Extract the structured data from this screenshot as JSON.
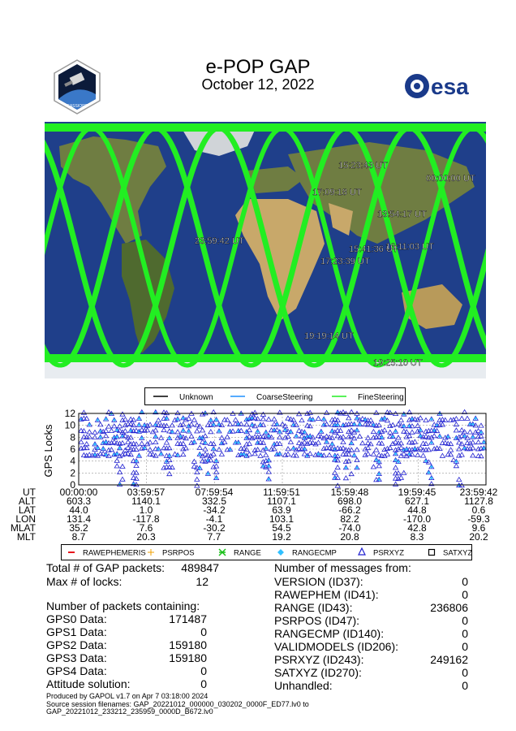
{
  "header": {
    "title": "e-POP GAP",
    "date": "October 12, 2022",
    "logo_left_label": "CASSIOPE",
    "logo_right_label": "esa"
  },
  "map": {
    "time_labels": [
      "15:23:43 UT",
      "00:00:00 UT",
      "17:09:18 UT",
      "13:54:17 UT",
      "23:59:42 UT",
      "15:41:36 UT",
      "16:11:03 UT",
      "17:23:39 UT",
      "19:19:14 UT",
      "19:25:10 UT"
    ],
    "legend": [
      {
        "label": "Unknown",
        "color": "#000000"
      },
      {
        "label": "CoarseSteering",
        "color": "#1e90ff"
      },
      {
        "label": "FineSteering",
        "color": "#22ee22"
      }
    ]
  },
  "chart_data": {
    "type": "scatter",
    "title": "",
    "ylabel": "GPS Locks",
    "ylim": [
      0,
      12
    ],
    "yticks": [
      0,
      2,
      4,
      6,
      8,
      10,
      12
    ],
    "x_ticks": [
      "00:00:00",
      "03:59:57",
      "07:59:54",
      "11:59:51",
      "15:59:48",
      "19:59:45",
      "23:59:42"
    ],
    "xlim_hours": [
      0,
      24
    ],
    "series": [
      {
        "name": "RAWEPHEMERIS",
        "color": "#e8141c",
        "marker": "dash",
        "values": []
      },
      {
        "name": "PSRPOS",
        "color": "#f0a000",
        "marker": "plus",
        "values": []
      },
      {
        "name": "RANGE",
        "color": "#18c018",
        "marker": "star",
        "values": []
      },
      {
        "name": "RANGECMP",
        "color": "#30c0ff",
        "marker": "diamond",
        "values": []
      },
      {
        "name": "PSRXYZ",
        "color": "#2020d0",
        "marker": "triangle",
        "values": []
      },
      {
        "name": "SATXYZ",
        "color": "#000000",
        "marker": "square",
        "values": []
      }
    ]
  },
  "ephemeris": {
    "row_labels": [
      "UT",
      "ALT",
      "LAT",
      "LON",
      "MLAT",
      "MLT"
    ],
    "columns": [
      [
        "00:00:00",
        "603.3",
        "44.0",
        "131.4",
        "35.2",
        "8.7"
      ],
      [
        "03:59:57",
        "1140.1",
        "1.0",
        "-117.8",
        "7.6",
        "20.3"
      ],
      [
        "07:59:54",
        "332.5",
        "-34.2",
        "-4.1",
        "-30.2",
        "7.7"
      ],
      [
        "11:59:51",
        "1107.1",
        "63.9",
        "103.1",
        "54.5",
        "19.2"
      ],
      [
        "15:59:48",
        "698.0",
        "-66.2",
        "82.2",
        "-74.0",
        "20.8"
      ],
      [
        "19:59:45",
        "627.1",
        "44.8",
        "-170.0",
        "42.8",
        "8.3"
      ],
      [
        "23:59:42",
        "1127.8",
        "0.6",
        "-59.3",
        "9.6",
        "20.2"
      ]
    ]
  },
  "stats_left": {
    "total_label": "Total # of GAP packets:",
    "total_value": "489847",
    "maxlocks_label": "Max # of locks:",
    "maxlocks_value": "12",
    "section_title": "Number of packets containing:",
    "rows": [
      {
        "label": "GPS0 Data:",
        "value": "171487"
      },
      {
        "label": "GPS1 Data:",
        "value": "0"
      },
      {
        "label": "GPS2 Data:",
        "value": "159180"
      },
      {
        "label": "GPS3 Data:",
        "value": "159180"
      },
      {
        "label": "GPS4 Data:",
        "value": "0"
      },
      {
        "label": "Attitude solution:",
        "value": "0"
      }
    ]
  },
  "stats_right": {
    "section_title": "Number of messages from:",
    "rows": [
      {
        "label": "VERSION (ID37):",
        "value": "0"
      },
      {
        "label": "RAWEPHEM (ID41):",
        "value": "0"
      },
      {
        "label": "RANGE (ID43):",
        "value": "236806"
      },
      {
        "label": "PSRPOS (ID47):",
        "value": "0"
      },
      {
        "label": "RANGECMP (ID140):",
        "value": "0"
      },
      {
        "label": "VALIDMODELS (ID206):",
        "value": "0"
      },
      {
        "label": "PSRXYZ (ID243):",
        "value": "249162"
      },
      {
        "label": "SATXYZ (ID270):",
        "value": "0"
      },
      {
        "label": "Unhandled:",
        "value": "0"
      }
    ]
  },
  "footer": {
    "line1": "Produced by GAPOL v1.7 on Apr  7 03:18:00 2024",
    "line2": "Source session filenames: GAP_20221012_000000_030202_0000F_ED77.lv0 to",
    "line3": "GAP_20221012_233212_235959_0000D_B672.lv0"
  }
}
